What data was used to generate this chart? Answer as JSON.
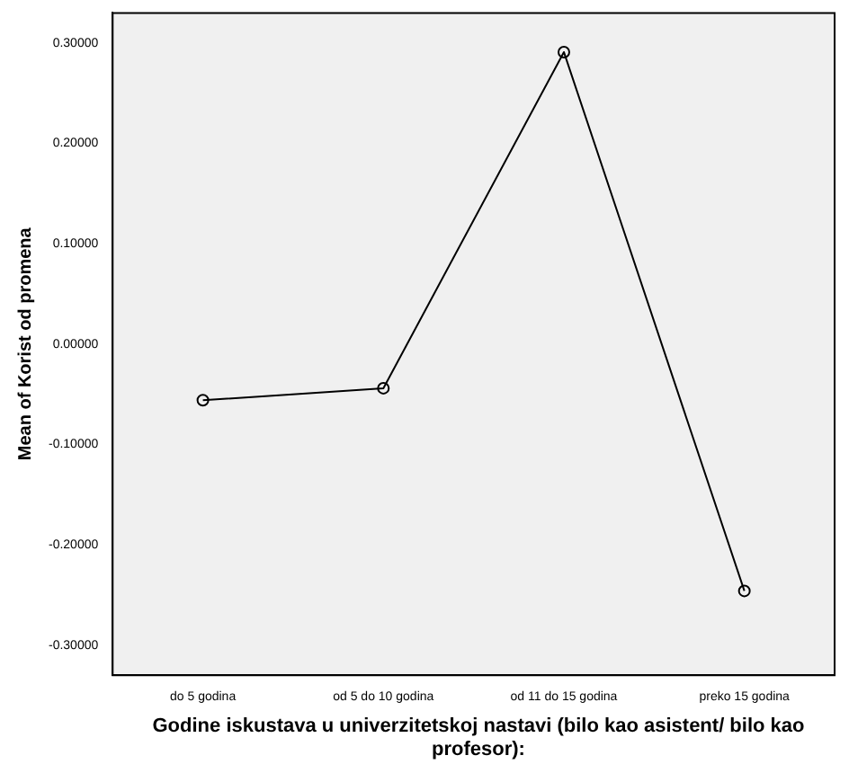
{
  "chart_data": {
    "type": "line",
    "xlabel": "Godine iskustava u univerzitetskoj nastavi (bilo kao asistent/ bilo kao profesor):",
    "ylabel": "Mean of Korist od promena",
    "categories": [
      "do 5 godina",
      "od 5 do 10 godina",
      "od 11 do 15 godina",
      "preko 15 godina"
    ],
    "series": [
      {
        "color": "#000000",
        "values": [
          -0.056,
          -0.044,
          0.291,
          -0.246
        ]
      }
    ],
    "ylim": [
      -0.33,
      0.33
    ],
    "yticks": [
      {
        "value": -0.3,
        "label": "-0.30000"
      },
      {
        "value": -0.2,
        "label": "-0.20000"
      },
      {
        "value": -0.1,
        "label": "-0.10000"
      },
      {
        "value": 0,
        "label": "0.00000"
      },
      {
        "value": 0.1,
        "label": "0.10000"
      },
      {
        "value": 0.2,
        "label": "0.20000"
      },
      {
        "value": 0.3,
        "label": "0.30000"
      }
    ],
    "grid": false,
    "legend": false,
    "marker": "circle",
    "line_style": "solid"
  }
}
